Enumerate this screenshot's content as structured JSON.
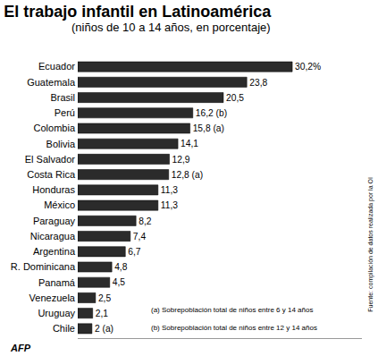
{
  "chart_data": {
    "type": "bar",
    "orientation": "horizontal",
    "title": "El trabajo infantil en Latinoamérica",
    "subtitle": "(niños de 10 a 14 años, en porcentaje)",
    "categories": [
      "Ecuador",
      "Guatemala",
      "Brasil",
      "Perú",
      "Colombia",
      "Bolivia",
      "El Salvador",
      "Costa Rica",
      "Honduras",
      "México",
      "Paraguay",
      "Nicaragua",
      "Argentina",
      "R. Dominicana",
      "Panamá",
      "Venezuela",
      "Uruguay",
      "Chile"
    ],
    "values": [
      30.2,
      23.8,
      20.5,
      16.2,
      15.8,
      14.1,
      12.9,
      12.8,
      11.3,
      11.3,
      8.2,
      7.4,
      6.7,
      4.8,
      4.5,
      2.5,
      2.1,
      2
    ],
    "value_labels": [
      "30,2%",
      "23,8",
      "20,5",
      "16,2 (b)",
      "15,8 (a)",
      "14,1",
      "12,9",
      "12,8 (a)",
      "11,3",
      "11,3",
      "8,2",
      "7,4",
      "6,7",
      "4,8",
      "4,5",
      "2,5",
      "2,1",
      "2 (a)"
    ],
    "data_labels": true,
    "color": "#2b2b2b",
    "xlim": [
      0,
      40
    ],
    "tick_labels": "y",
    "grid": false,
    "annotations": [
      "(a) Sobrepoblación total de niños entre 6 y 14 años",
      "(b) Sobrepoblación total de niños entre 12 y 14 años"
    ],
    "source": "Fuente: compilación de datos realizada por la OI",
    "credit": "AFP"
  }
}
